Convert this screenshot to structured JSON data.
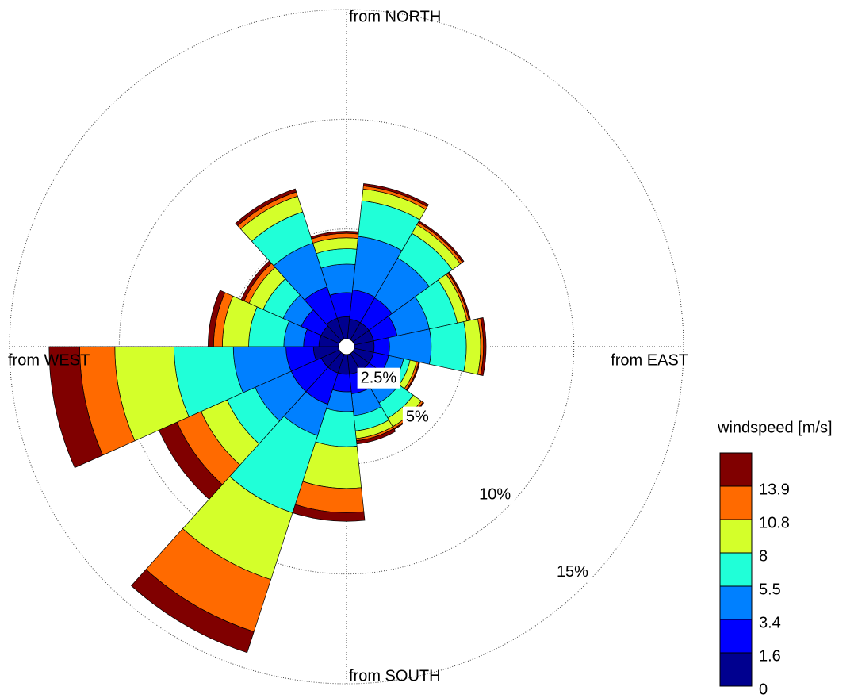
{
  "chart_data": {
    "type": "windrose",
    "x": [
      18,
      42,
      66,
      90,
      114,
      138,
      162,
      186,
      210,
      234,
      258,
      282,
      306,
      330,
      354
    ],
    "series": [
      {
        "color": "#00008f",
        "values": [
          0.9,
          0.9,
          0.9,
          0.9,
          0.9,
          0.9,
          0.9,
          0.9,
          0.9,
          0.9,
          1.15,
          0.9,
          0.9,
          1.0,
          1.0
        ]
      },
      {
        "color": "#0000ff",
        "values": [
          1.34,
          1.3,
          1.1,
          0.7,
          0.7,
          0.8,
          0.9,
          0.8,
          1.5,
          1.5,
          1.25,
          0.7,
          1.0,
          1.5,
          1.1
        ]
      },
      {
        "color": "#0080ff",
        "values": [
          2.45,
          2.1,
          1.5,
          1.9,
          0.7,
          0.9,
          1.0,
          0.9,
          1.5,
          1.8,
          2.4,
          0.9,
          0.9,
          2.1,
          1.3
        ]
      },
      {
        "color": "#20ffd8",
        "values": [
          1.63,
          1.3,
          1.3,
          1.6,
          0.3,
          0.8,
          0.7,
          1.6,
          3.7,
          1.4,
          2.7,
          1.6,
          1.0,
          1.5,
          0.7
        ]
      },
      {
        "color": "#d4ff2a",
        "values": [
          0.54,
          0.45,
          0.45,
          0.65,
          0.3,
          0.45,
          0.35,
          1.9,
          3.2,
          1.3,
          2.7,
          1.2,
          0.7,
          0.75,
          0.5
        ]
      },
      {
        "color": "#ff6a00",
        "values": [
          0.14,
          0.12,
          0.1,
          0.13,
          0.1,
          0.1,
          0.1,
          1.1,
          2.5,
          1.2,
          1.6,
          0.4,
          0.25,
          0.2,
          0.2
        ]
      },
      {
        "color": "#800000",
        "values": [
          0.11,
          0.08,
          0.07,
          0.12,
          0.05,
          0.05,
          0.15,
          0.4,
          1.0,
          0.9,
          1.4,
          0.25,
          0.15,
          0.15,
          0.1
        ]
      }
    ],
    "rlim": [
      0,
      15
    ],
    "rticks": [
      {
        "value": 2.5,
        "label": "2.5%"
      },
      {
        "value": 5,
        "label": "5%"
      },
      {
        "value": 10,
        "label": "10%"
      },
      {
        "value": 15,
        "label": "15%"
      }
    ],
    "direction_labels": [
      "from NORTH",
      "from EAST",
      "from SOUTH",
      "from WEST"
    ],
    "colorbar": {
      "title": "windspeed [m/s]",
      "ticks": [
        0,
        1.6,
        3.4,
        5.5,
        8,
        10.8,
        13.9
      ]
    },
    "grid": true
  }
}
